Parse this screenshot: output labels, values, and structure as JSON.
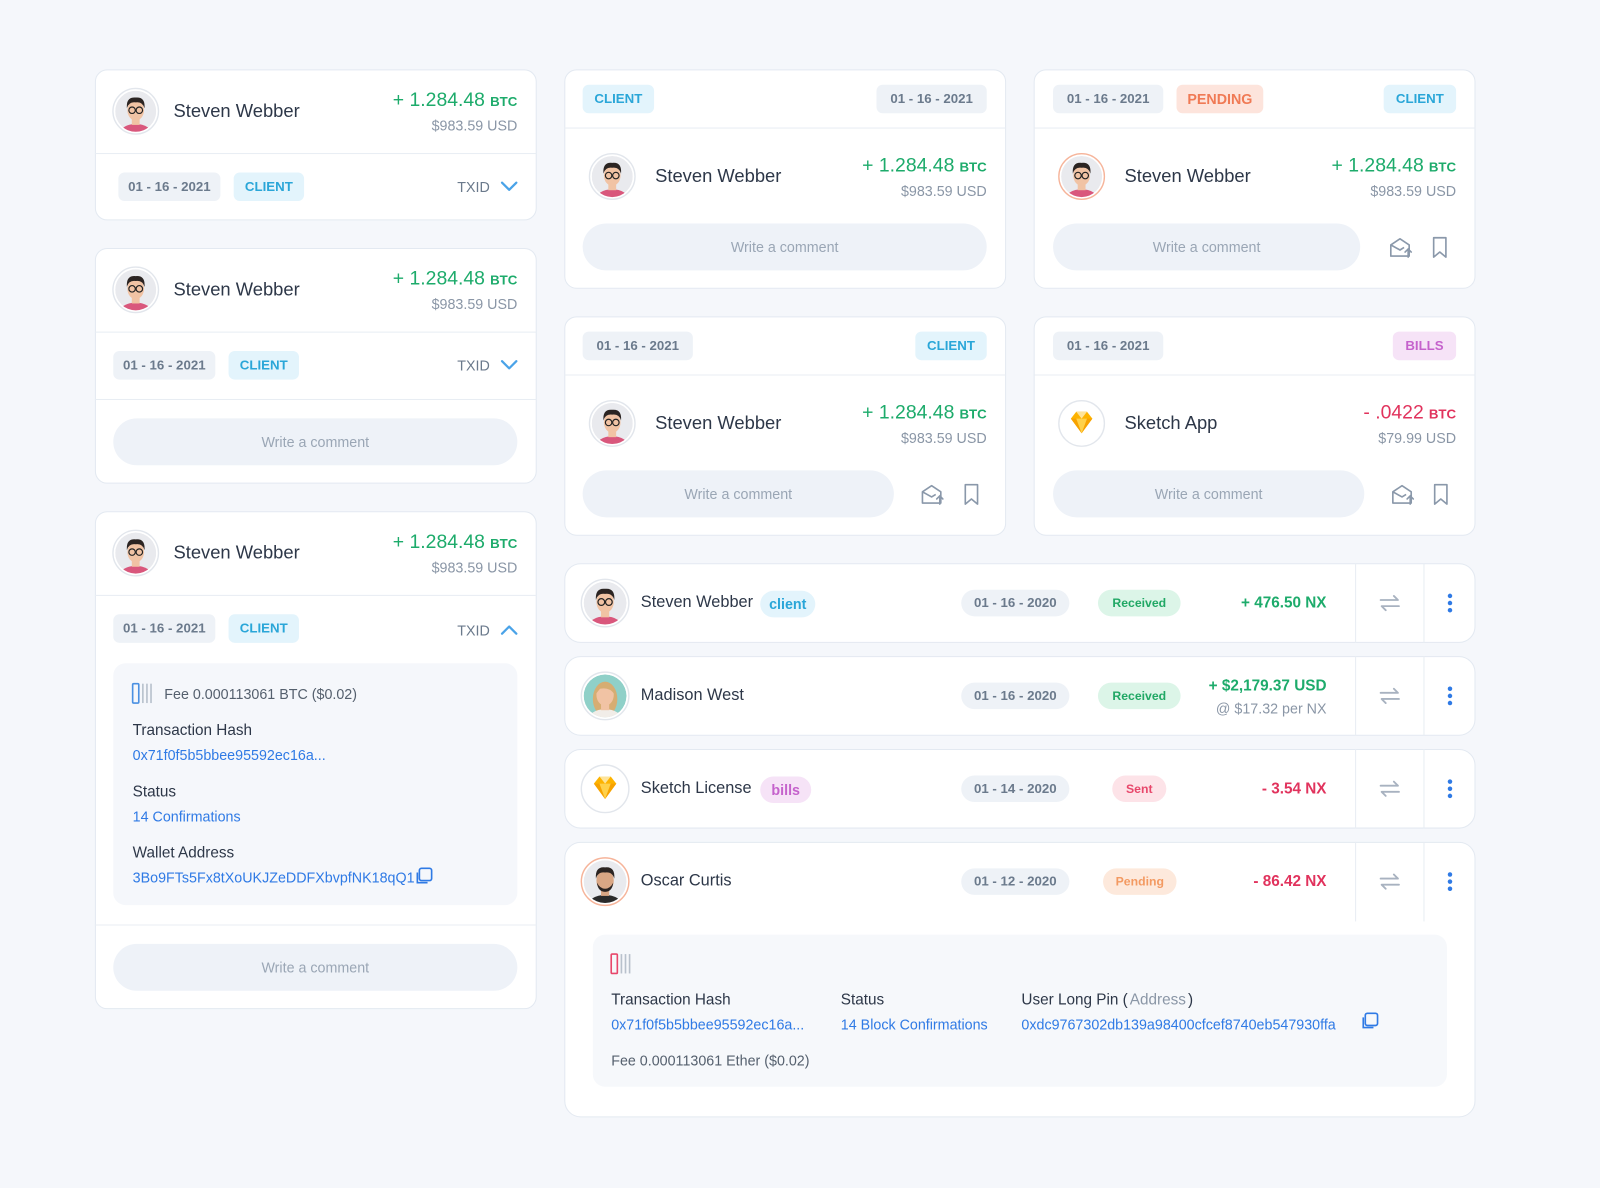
{
  "cards": [
    {
      "name": "Steven Webber",
      "amount": "+ 1.284.48",
      "unit": "BTC",
      "usd": "$983.59 USD",
      "date": "01 - 16 - 2021",
      "tag": "CLIENT",
      "txid": "TXID"
    },
    {
      "name": "Steven Webber",
      "amount": "+ 1.284.48",
      "unit": "BTC",
      "usd": "$983.59 USD",
      "date": "01 - 16 - 2021",
      "tag": "CLIENT",
      "txid": "TXID",
      "comment": "Write a comment"
    },
    {
      "name": "Steven Webber",
      "amount": "+ 1.284.48",
      "unit": "BTC",
      "usd": "$983.59 USD",
      "date": "01 - 16 - 2021",
      "tag": "CLIENT",
      "txid": "TXID",
      "details": {
        "fee": "Fee 0.000113061 BTC ($0.02)",
        "hash_label": "Transaction Hash",
        "hash": "0x71f0f5b5bbee95592ec16a...",
        "status_label": "Status",
        "status": "14 Confirmations",
        "wallet_label": "Wallet Address",
        "wallet": "3Bo9FTs5Fx8tXoUKJZeDDFXbvpfNK18qQ1"
      },
      "comment": "Write a comment"
    },
    {
      "tag": "CLIENT",
      "date": "01 - 16 - 2021",
      "name": "Steven Webber",
      "amount": "+ 1.284.48",
      "unit": "BTC",
      "usd": "$983.59 USD",
      "comment": "Write a comment"
    },
    {
      "date": "01 - 16 - 2021",
      "status": "PENDING",
      "tag": "CLIENT",
      "name": "Steven Webber",
      "amount": "+ 1.284.48",
      "unit": "BTC",
      "usd": "$983.59 USD",
      "comment": "Write a comment"
    },
    {
      "date": "01 - 16 - 2021",
      "tag": "CLIENT",
      "name": "Steven Webber",
      "amount": "+ 1.284.48",
      "unit": "BTC",
      "usd": "$983.59 USD",
      "comment": "Write a comment"
    },
    {
      "date": "01 - 16 - 2021",
      "tag": "BILLS",
      "name": "Sketch App",
      "amount": "- .0422",
      "unit": "BTC",
      "usd": "$79.99 USD",
      "comment": "Write a comment"
    }
  ],
  "transactions": [
    {
      "name": "Steven Webber",
      "tag": "client",
      "date": "01 - 16 - 2020",
      "status": "Received",
      "amount": "+ 476.50 NX"
    },
    {
      "name": "Madison West",
      "date": "01 - 16 - 2020",
      "status": "Received",
      "amount": "+ $2,179.37 USD",
      "rate": "@ $17.32 per NX"
    },
    {
      "name": "Sketch License",
      "tag": "bills",
      "date": "01 - 14 - 2020",
      "status": "Sent",
      "amount": "- 3.54 NX"
    },
    {
      "name": "Oscar Curtis",
      "date": "01 - 12 - 2020",
      "status": "Pending",
      "amount": "- 86.42 NX",
      "details": {
        "hash_label": "Transaction Hash",
        "hash": "0x71f0f5b5bbee95592ec16a...",
        "status_label": "Status",
        "status": "14 Block Confirmations",
        "pin_label": "User Long Pin (",
        "pin_note": "Address",
        "pin_close": ")",
        "pin": "0xdc9767302db139a98400cfcef8740eb547930ffa",
        "fee": "Fee 0.000113061 Ether ($0.02)"
      }
    }
  ]
}
